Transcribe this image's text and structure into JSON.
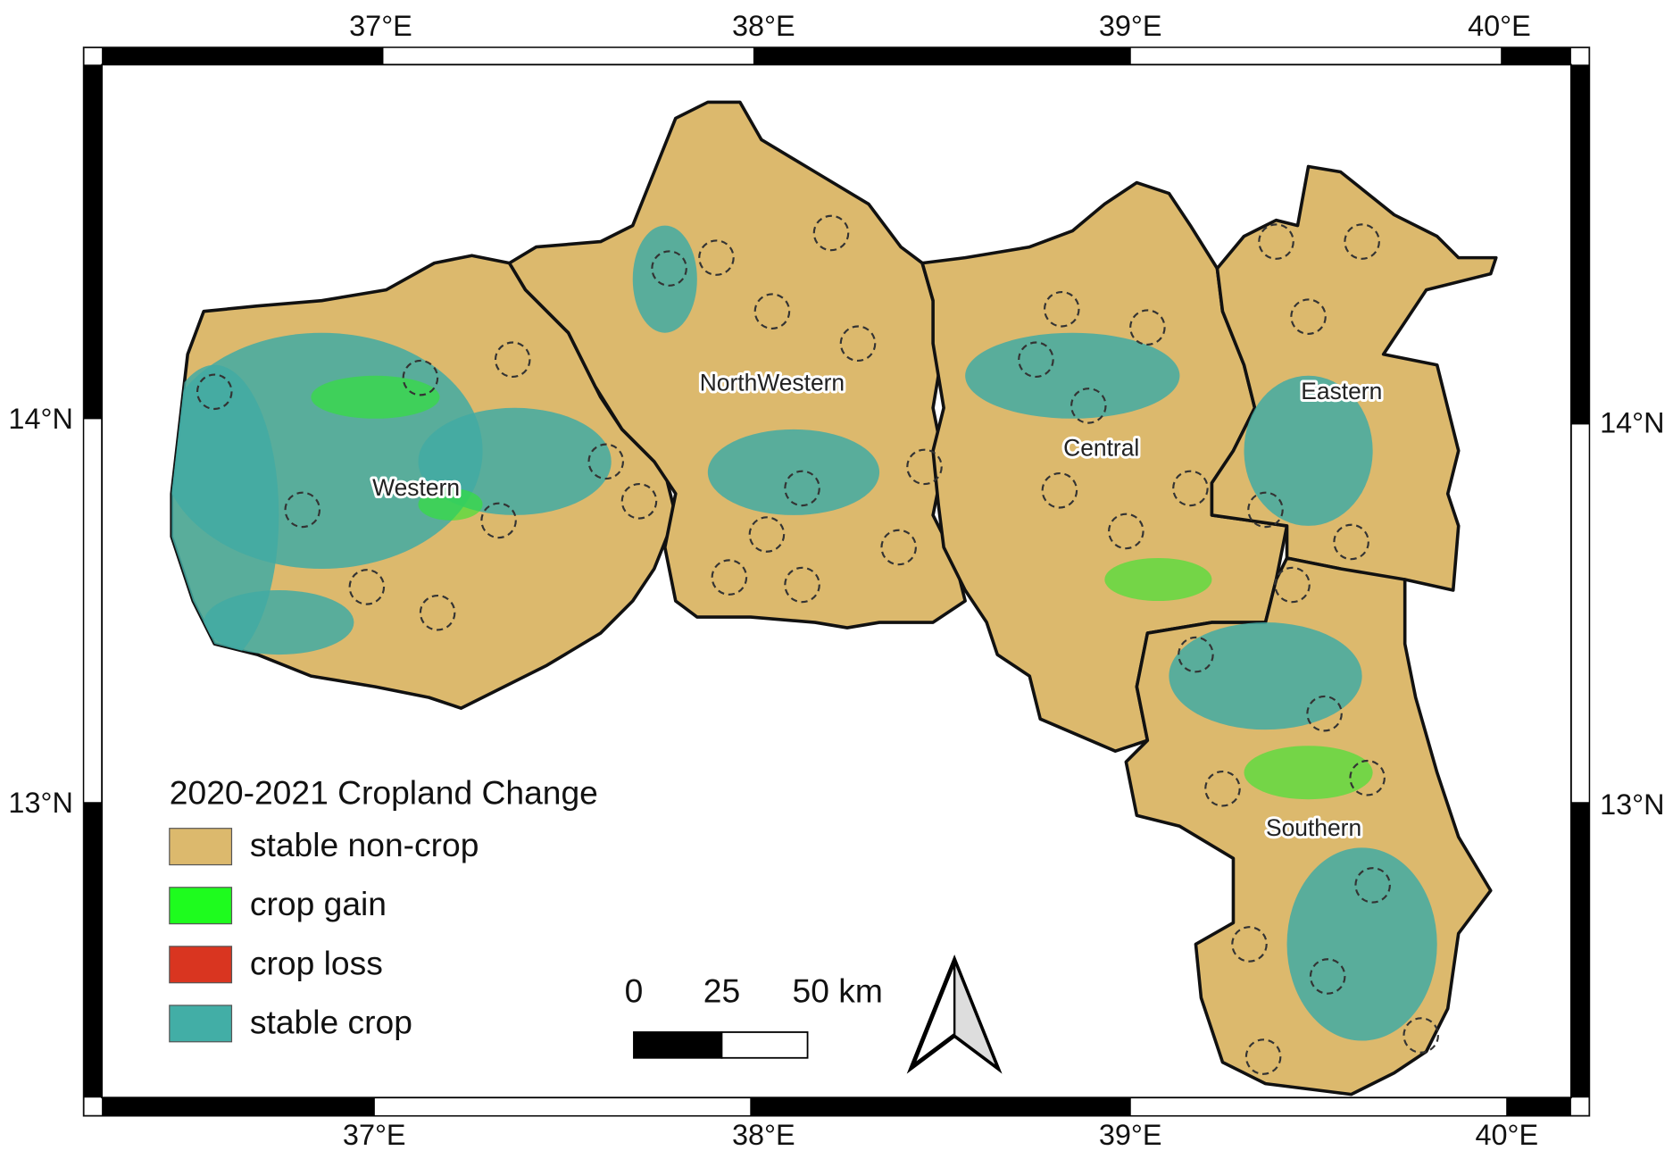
{
  "x_ticks_top": [
    "37°E",
    "38°E",
    "39°E",
    "40°E"
  ],
  "x_ticks_bottom": [
    "37°E",
    "38°E",
    "39°E",
    "40°E"
  ],
  "y_ticks_left": [
    "14°N",
    "13°N"
  ],
  "y_ticks_right": [
    "14°N",
    "13°N"
  ],
  "regions": [
    "NorthWestern",
    "Western",
    "Central",
    "Eastern",
    "Southern"
  ],
  "legend": {
    "title": "2020-2021 Cropland Change",
    "items": [
      {
        "label": "stable non-crop",
        "color": "#dcb96d"
      },
      {
        "label": "crop gain",
        "color": "#1efc1e"
      },
      {
        "label": "crop loss",
        "color": "#d93520"
      },
      {
        "label": "stable crop",
        "color": "#42aea6"
      }
    ]
  },
  "scale_bar": [
    "0",
    "25",
    "50 km"
  ]
}
